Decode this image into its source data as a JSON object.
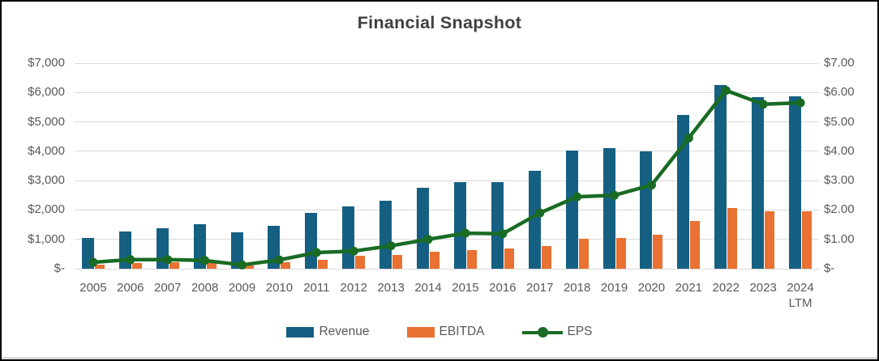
{
  "title": "Financial Snapshot",
  "colors": {
    "revenue": "#156082",
    "ebitda": "#E97132",
    "eps": "#196B24",
    "title_text": "#404040",
    "axis_text": "#595959",
    "gridline": "#d9d9d9"
  },
  "legend": [
    {
      "name": "Revenue",
      "type": "bar",
      "color": "#156082"
    },
    {
      "name": "EBITDA",
      "type": "bar",
      "color": "#E97132"
    },
    {
      "name": "EPS",
      "type": "line",
      "color": "#196B24"
    }
  ],
  "chart_data": {
    "type": "bar",
    "title": "Financial Snapshot",
    "categories": [
      "2005",
      "2006",
      "2007",
      "2008",
      "2009",
      "2010",
      "2011",
      "2012",
      "2013",
      "2014",
      "2015",
      "2016",
      "2017",
      "2018",
      "2019",
      "2020",
      "2021",
      "2022",
      "2023",
      "2024 LTM"
    ],
    "series": [
      {
        "name": "Revenue",
        "type": "bar",
        "axis": "left",
        "color": "#156082",
        "values": [
          1050,
          1260,
          1390,
          1510,
          1240,
          1460,
          1890,
          2130,
          2320,
          2770,
          2950,
          2960,
          3330,
          4020,
          4110,
          4000,
          5250,
          6250,
          5850,
          5870
        ]
      },
      {
        "name": "EBITDA",
        "type": "bar",
        "axis": "left",
        "color": "#E97132",
        "values": [
          140,
          200,
          230,
          245,
          120,
          220,
          310,
          430,
          480,
          590,
          645,
          690,
          780,
          1010,
          1040,
          1170,
          1630,
          2080,
          1950,
          1950
        ]
      },
      {
        "name": "EPS",
        "type": "line",
        "axis": "right",
        "color": "#196B24",
        "values": [
          0.22,
          0.31,
          0.31,
          0.28,
          0.13,
          0.3,
          0.55,
          0.6,
          0.78,
          1.0,
          1.21,
          1.19,
          1.9,
          2.45,
          2.5,
          2.85,
          4.45,
          6.07,
          5.6,
          5.65
        ]
      }
    ],
    "xlabel": "",
    "ylabel_left": "",
    "ylabel_right": "",
    "ylim_left": [
      0,
      7000
    ],
    "ylim_right": [
      0,
      7
    ],
    "left_ticks": [
      "$-",
      "$1,000",
      "$2,000",
      "$3,000",
      "$4,000",
      "$5,000",
      "$6,000",
      "$7,000"
    ],
    "right_ticks": [
      "$-",
      "$1.00",
      "$2.00",
      "$3.00",
      "$4.00",
      "$5.00",
      "$6.00",
      "$7.00"
    ],
    "grid": true,
    "legend_position": "bottom"
  }
}
